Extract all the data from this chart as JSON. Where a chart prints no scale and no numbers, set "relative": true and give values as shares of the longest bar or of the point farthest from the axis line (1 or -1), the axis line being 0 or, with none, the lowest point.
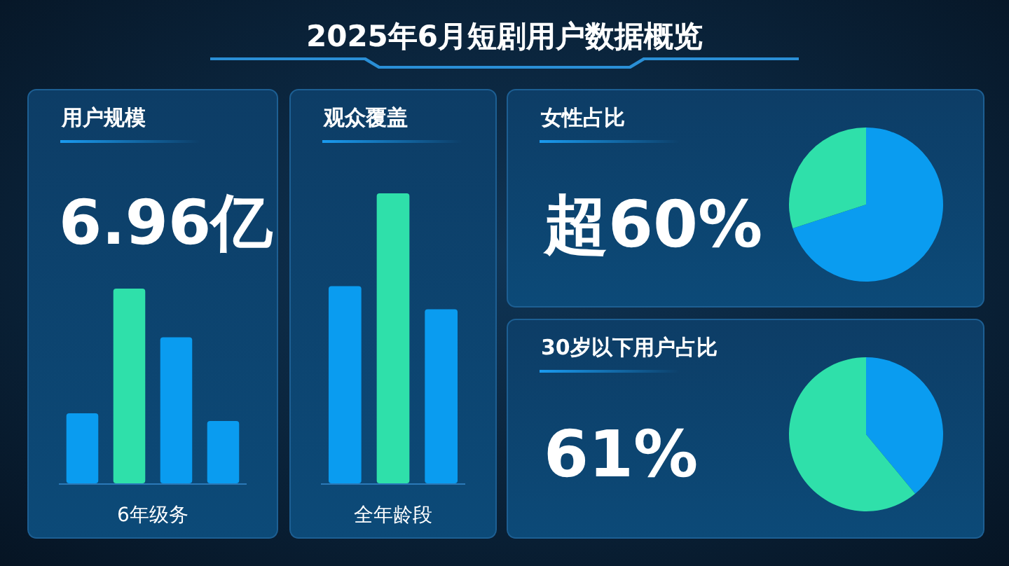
{
  "chart_data": [
    {
      "type": "other",
      "title": "2025年6月短剧用户数据概览"
    },
    {
      "type": "bar",
      "relative": true,
      "title": "用户规模",
      "annotations": [
        "6.96亿"
      ],
      "xlabel": "6年级务",
      "categories": [
        null,
        null,
        null,
        null
      ],
      "values": [
        0.36,
        1,
        0.75,
        0.32
      ],
      "colors": [
        "#0a9cf0",
        "#2fe0aa",
        "#0a9cf0",
        "#0a9cf0"
      ]
    },
    {
      "type": "bar",
      "relative": true,
      "title": "观众覆盖",
      "xlabel": "全年龄段",
      "categories": [
        null,
        null,
        null
      ],
      "values": [
        0.68,
        1,
        0.6
      ],
      "colors": [
        "#0a9cf0",
        "#2fe0aa",
        "#0a9cf0"
      ]
    },
    {
      "type": "pie",
      "title": "女性占比",
      "annotations": [
        "超60%"
      ],
      "categories": [
        null,
        null
      ],
      "values": [
        70,
        30
      ],
      "colors": [
        "#0a9cf0",
        "#2fe0aa"
      ]
    },
    {
      "type": "pie",
      "title": "30岁以下用户占比",
      "annotations": [
        "61%"
      ],
      "categories": [
        null,
        null
      ],
      "values": [
        39,
        61
      ],
      "colors": [
        "#0a9cf0",
        "#2fe0aa"
      ]
    }
  ]
}
